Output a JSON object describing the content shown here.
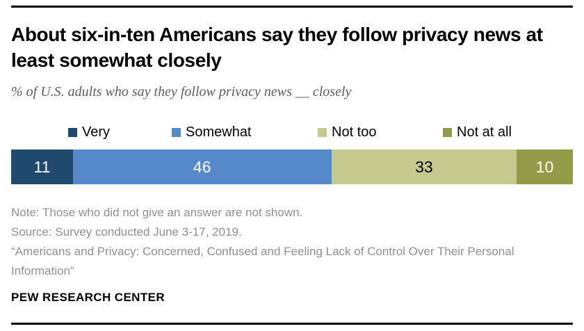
{
  "chart_data": {
    "type": "bar",
    "stacked": true,
    "orientation": "horizontal",
    "title": "About six-in-ten Americans say they follow privacy news at least somewhat closely",
    "subtitle": "% of U.S. adults who say they follow privacy news __ closely",
    "categories": [
      "Very",
      "Somewhat",
      "Not too",
      "Not at all"
    ],
    "values": [
      11,
      46,
      33,
      10
    ],
    "colors": [
      "#1f4a6e",
      "#5589ca",
      "#c4ca8e",
      "#939b49"
    ],
    "value_label_colors": [
      "#ffffff",
      "#ffffff",
      "#000000",
      "#ffffff"
    ],
    "xlim": [
      0,
      100
    ],
    "legend_position": "top",
    "grid": false
  },
  "notes": {
    "note": "Note: Those who did not give an answer are not shown.",
    "source": "Source: Survey conducted June 3-17, 2019.",
    "citation": "“Americans and Privacy: Concerned, Confused and Feeling Lack of Control Over Their Personal Information”"
  },
  "footer": {
    "brand": "PEW RESEARCH CENTER"
  }
}
